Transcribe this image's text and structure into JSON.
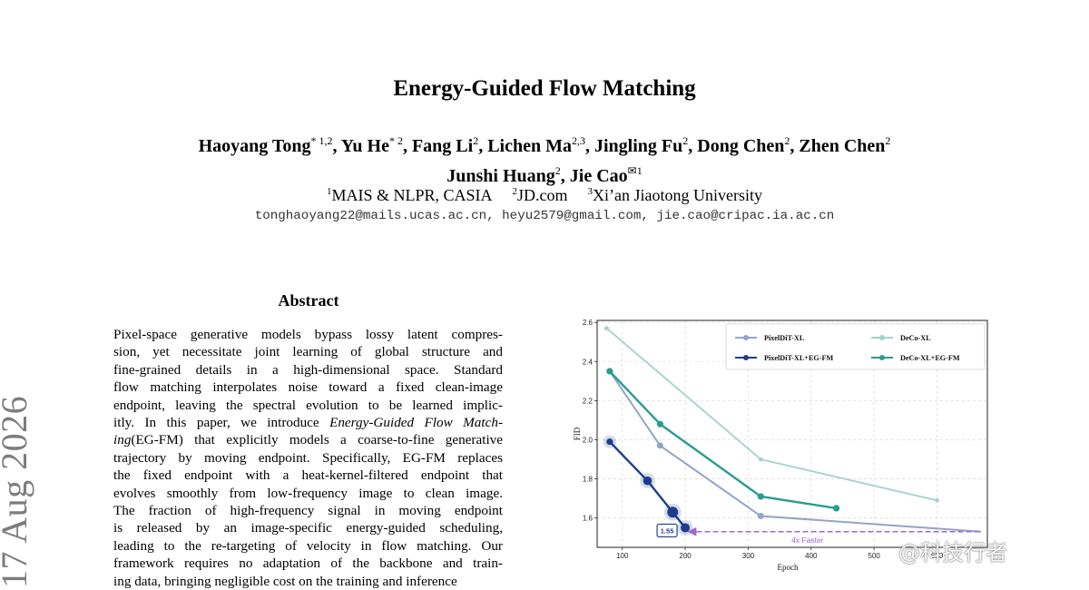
{
  "paper": {
    "title": "Energy-Guided Flow Matching",
    "authors_line1": [
      {
        "name": "Haoyang Tong",
        "sup": "* 1,2",
        "sep": ", "
      },
      {
        "name": "Yu He",
        "sup": "* 2",
        "sep": ", "
      },
      {
        "name": "Fang Li",
        "sup": "2",
        "sep": ", "
      },
      {
        "name": "Lichen Ma",
        "sup": "2,3",
        "sep": ", "
      },
      {
        "name": "Jingling Fu",
        "sup": "2",
        "sep": ", "
      },
      {
        "name": "Dong Chen",
        "sup": "2",
        "sep": ", "
      },
      {
        "name": "Zhen Chen",
        "sup": "2",
        "sep": ""
      }
    ],
    "authors_line2": [
      {
        "name": "Junshi Huang",
        "sup": "2",
        "sep": ", "
      },
      {
        "name": "Jie Cao",
        "sup": "✉1",
        "sep": ""
      }
    ],
    "affiliations": [
      {
        "sup": "1",
        "name": "MAIS & NLPR, CASIA"
      },
      {
        "sup": "2",
        "name": "JD.com"
      },
      {
        "sup": "3",
        "name": "Xi’an Jiaotong University"
      }
    ],
    "emails": "tonghaoyang22@mails.ucas.ac.cn, heyu2579@gmail.com, jie.cao@cripac.ia.ac.cn",
    "abstract_heading": "Abstract",
    "abstract_lines": [
      "Pixel-space generative models bypass lossy latent compres-",
      "sion, yet necessitate joint learning of global structure and",
      "fine-grained details in a high-dimensional space. Standard",
      "flow matching interpolates noise toward a fixed clean-image",
      "endpoint, leaving the spectral evolution to be learned implic-",
      "itly. In this paper, we introduce |Energy-Guided Flow Match-|",
      "|ing|(EG-FM) that explicitly models a coarse-to-fine generative",
      "trajectory by moving endpoint. Specifically, EG-FM replaces",
      "the fixed endpoint with a heat-kernel-filtered endpoint that",
      "evolves smoothly from low-frequency image to clean image.",
      "The fraction of high-frequency signal in moving endpoint",
      "is released by an image-specific energy-guided scheduling,",
      "leading to the re-targeting of velocity in flow matching. Our",
      "framework requires no adaptation of the backbone and train-",
      "ing data, bringing negligible cost on the training and inference"
    ],
    "arxiv_stamp": "17 Aug 2026",
    "watermark": "@科技行者"
  },
  "chart_data": {
    "type": "line",
    "xlabel": "Epoch",
    "ylabel": "FID",
    "xlim": [
      60,
      680
    ],
    "ylim": [
      1.45,
      2.61
    ],
    "x_ticks": [
      100,
      200,
      300,
      400,
      500,
      600
    ],
    "y_ticks": [
      1.6,
      1.8,
      2.0,
      2.2,
      2.4,
      2.6
    ],
    "y_tick_labels": [
      "1.6",
      "1.8",
      "2.0",
      "2.2",
      "2.4",
      "2.6"
    ],
    "legend_position": "top-right",
    "series": [
      {
        "name": "PixelDiT-XL",
        "color": "#94a3c8",
        "x": [
          80,
          160,
          320,
          670
        ],
        "y": [
          2.35,
          1.97,
          1.61,
          1.53
        ]
      },
      {
        "name": "DeCo-XL",
        "color": "#a7d0cc",
        "x": [
          75,
          320,
          600
        ],
        "y": [
          2.57,
          1.9,
          1.69
        ]
      },
      {
        "name": "PixelDiT-XL+EG-FM",
        "color": "#1d3e8c",
        "x": [
          80,
          140,
          180,
          200
        ],
        "y": [
          1.99,
          1.79,
          1.63,
          1.55
        ]
      },
      {
        "name": "DeCo-XL+EG-FM",
        "color": "#2a9c90",
        "x": [
          80,
          160,
          320,
          440
        ],
        "y": [
          2.35,
          2.08,
          1.71,
          1.65
        ]
      }
    ],
    "annotations": [
      {
        "text": "1.55",
        "x": 200,
        "y": 1.55
      },
      {
        "text": "4x Faster",
        "from_x": 205,
        "to_x": 670,
        "y": 1.53,
        "color": "#9a6cc6"
      }
    ]
  }
}
